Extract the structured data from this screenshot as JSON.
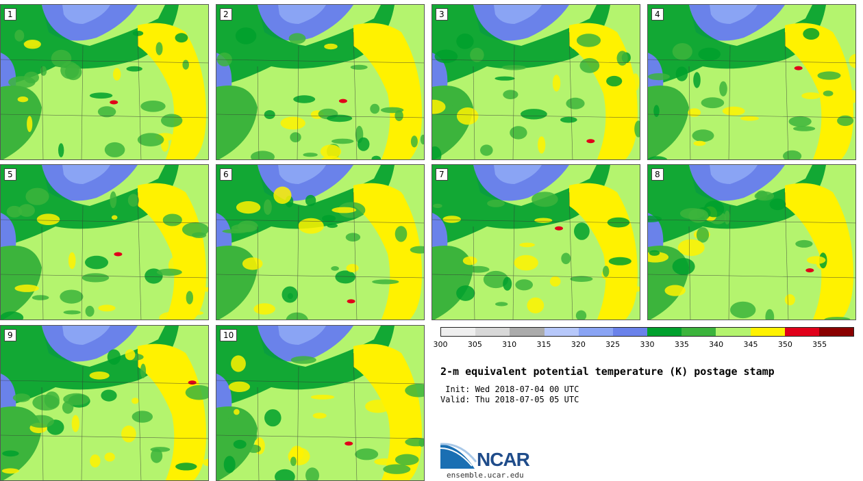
{
  "panels": [
    "1",
    "2",
    "3",
    "4",
    "5",
    "6",
    "7",
    "8",
    "9",
    "10"
  ],
  "colorbar": {
    "colors": [
      "#efefef",
      "#d8d8d8",
      "#ababab",
      "#b7c8fa",
      "#8aa4f4",
      "#6a82ea",
      "#00a02d",
      "#3cb43c",
      "#b4f46e",
      "#fff200",
      "#e0001a",
      "#8a0000"
    ],
    "ticks": [
      "300",
      "305",
      "310",
      "315",
      "320",
      "325",
      "330",
      "335",
      "340",
      "345",
      "350",
      "355"
    ]
  },
  "title": "2-m equivalent potential temperature (K) postage stamp",
  "init": " Init: Wed 2018-07-04 00 UTC",
  "valid": "Valid: Thu 2018-07-05 05 UTC",
  "logo": {
    "name": "NCAR",
    "url": "ensemble.ucar.edu"
  }
}
